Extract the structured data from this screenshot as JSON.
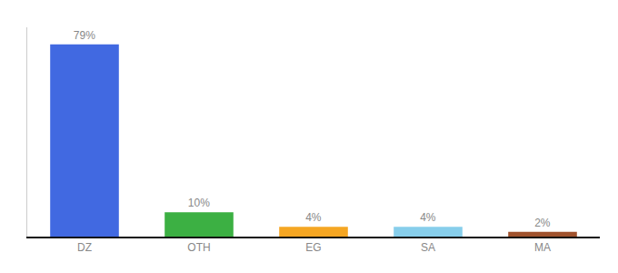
{
  "chart_data": {
    "type": "bar",
    "categories": [
      "DZ",
      "OTH",
      "EG",
      "SA",
      "MA"
    ],
    "values": [
      79,
      10,
      4,
      4,
      2
    ],
    "value_labels": [
      "79%",
      "10%",
      "4%",
      "4%",
      "2%"
    ],
    "colors": [
      "#4169e1",
      "#3cb043",
      "#f5a623",
      "#87ceeb",
      "#a0522d"
    ],
    "data_labels": true,
    "ylim": [
      0,
      86
    ],
    "tick_labels": "x",
    "grid": false
  }
}
